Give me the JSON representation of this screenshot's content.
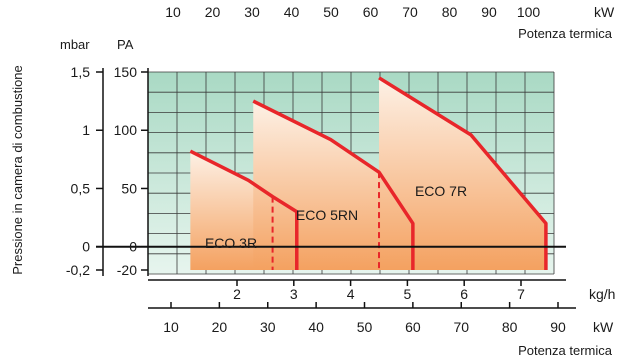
{
  "chart_data": {
    "type": "area",
    "ylabel": "Pressione in camera di combustione",
    "y_units": {
      "left": "mbar",
      "right": "PA"
    },
    "mbar_ticks": [
      "1,5",
      "1",
      "0,5",
      "0",
      "-0,2"
    ],
    "pa_ticks": [
      150,
      100,
      50,
      0,
      -20
    ],
    "ylim": [
      -20,
      150
    ],
    "flow_axis": {
      "unit": "kg/h",
      "ticks": [
        2,
        3,
        4,
        5,
        6,
        7
      ]
    },
    "power_axis_top": {
      "unit": "kW",
      "ticks": [
        10,
        20,
        30,
        40,
        50,
        60,
        70,
        80,
        90,
        100
      ],
      "label": "Potenza termica"
    },
    "power_axis_bottom": {
      "unit": "kW",
      "ticks": [
        10,
        20,
        30,
        40,
        50,
        60,
        70,
        80,
        90
      ],
      "label": "Potenza termica"
    },
    "xlim_kw": [
      5.5,
      95
    ],
    "grid": true,
    "series": [
      {
        "name": "ECO 3R",
        "x": [
          14,
          26,
          31,
          36,
          36
        ],
        "y": [
          82,
          57,
          43,
          30,
          -20
        ]
      },
      {
        "name": "ECO 5RN",
        "x": [
          27,
          43,
          53,
          60,
          60
        ],
        "y": [
          125,
          92,
          64,
          20,
          -20
        ]
      },
      {
        "name": "ECO 7R",
        "x": [
          53,
          72,
          87.5,
          87.5
        ],
        "y": [
          145,
          96,
          20,
          -20
        ]
      }
    ],
    "dashed_separators": [
      {
        "x": 31,
        "y_top": 43
      },
      {
        "x": 53,
        "y_top": 64
      }
    ],
    "colors": {
      "curve": "#e8262a",
      "fill_top": "#fdf1e6",
      "fill_bottom": "#f4a160",
      "grid_top": "#a9d9c4",
      "grid_bottom": "#e7f5ee",
      "grid_line": "#3a3a3a",
      "zero_line": "#111111"
    }
  }
}
